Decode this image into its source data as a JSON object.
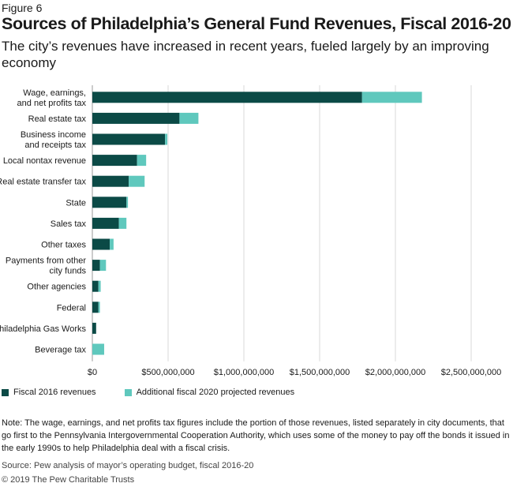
{
  "figure_label": "Figure 6",
  "title": "Sources of Philadelphia’s General Fund Revenues, Fiscal 2016-20",
  "subtitle": "The city’s revenues have increased in recent years, fueled largely by an improving economy",
  "note": "Note: The wage, earnings, and net profits tax figures include the portion of those revenues, listed separately in city documents, that go first to the Pennsylvania Intergovernmental Cooperation Authority, which uses some of the money to pay off the bonds it issued in the early 1990s to help Philadelphia deal with a fiscal crisis.",
  "source": "Source: Pew analysis of mayor’s operating budget, fiscal 2016-20",
  "copyright": "© 2019 The Pew Charitable Trusts",
  "colors": {
    "fiscal_2016": "#0b4a46",
    "additional_2020": "#5fc8bd",
    "grid": "#d9d9d9"
  },
  "chart_data": {
    "type": "bar",
    "orientation": "horizontal",
    "stacked": true,
    "categories": [
      [
        "Wage, earnings,",
        "and net profits tax"
      ],
      [
        "Real estate tax"
      ],
      [
        "Business income",
        "and receipts tax"
      ],
      [
        "Local nontax revenue"
      ],
      [
        "Real estate transfer tax"
      ],
      [
        "State"
      ],
      [
        "Sales tax"
      ],
      [
        "Other taxes"
      ],
      [
        "Payments from other",
        "city funds"
      ],
      [
        "Other agencies"
      ],
      [
        "Federal"
      ],
      [
        "Philadelphia Gas Works"
      ],
      [
        "Beverage tax"
      ]
    ],
    "series": [
      {
        "name": "Fiscal 2016 revenues",
        "color": "#0b4a46",
        "values": [
          1780000000,
          575000000,
          480000000,
          295000000,
          240000000,
          225000000,
          175000000,
          115000000,
          50000000,
          40000000,
          40000000,
          25000000,
          0
        ]
      },
      {
        "name": "Additional fiscal 2020 projected revenues",
        "color": "#5fc8bd",
        "values": [
          395000000,
          125000000,
          15000000,
          60000000,
          105000000,
          10000000,
          50000000,
          25000000,
          40000000,
          15000000,
          10000000,
          0,
          78000000
        ]
      }
    ],
    "x_ticks": [
      "$0",
      "$500,000,000",
      "$1,000,000,000",
      "$1,500,000,000",
      "$2,000,000,000",
      "$2,500,000,000"
    ],
    "xlim": [
      0,
      2500000000
    ],
    "grid": true,
    "legend": "bottom-left"
  }
}
